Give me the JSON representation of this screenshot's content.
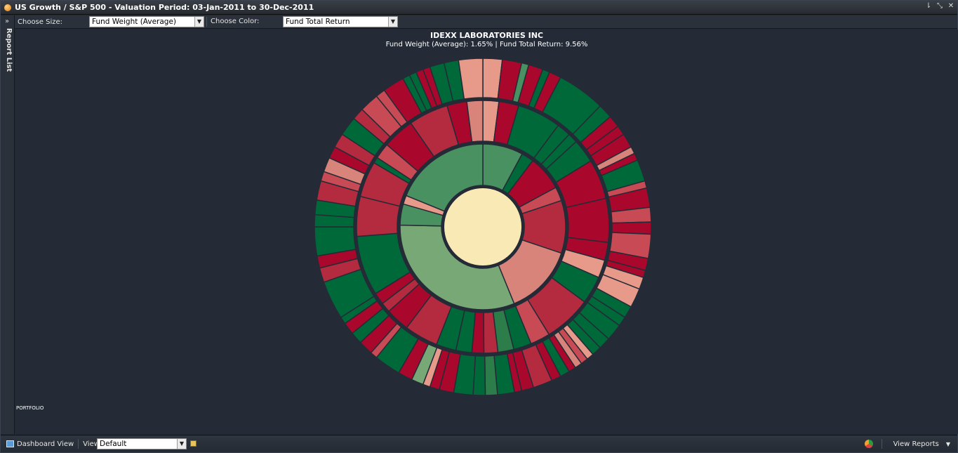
{
  "window": {
    "title": "US Growth / S&P 500 - Valuation Period: 03-Jan-2011 to 30-Dec-2011"
  },
  "toolbar": {
    "size_label": "Choose Size:",
    "size_value": "Fund Weight (Average)",
    "color_label": "Choose Color:",
    "color_value": "Fund Total Return"
  },
  "side_rail": {
    "label": "Report List"
  },
  "chart": {
    "title": "IDEXX LABORATORIES INC",
    "subtitle": "Fund Weight (Average): 1.65% | Fund Total Return: 9.56%",
    "root_label": "PORTFOLIO",
    "center_color": "#f9eab5",
    "colors": {
      "dark_green": "#00693a",
      "green": "#2d7d4a",
      "mid_green": "#4a9162",
      "light_green": "#78a876",
      "dark_red": "#a9082c",
      "red": "#b42a3f",
      "mid_red": "#c74a55",
      "pink": "#d9847a",
      "light_pink": "#e89a8a"
    },
    "rings": [
      {
        "name": "sector",
        "segments": [
          [
            "mid_green",
            23
          ],
          [
            "dark_green",
            7
          ],
          [
            "dark_red",
            20
          ],
          [
            "mid_red",
            8
          ],
          [
            "red",
            30
          ],
          [
            "pink",
            40
          ],
          [
            "light_green",
            92
          ],
          [
            "mid_green",
            12
          ],
          [
            "light_pink",
            5
          ],
          [
            "mid_green",
            55
          ]
        ]
      },
      {
        "name": "industry",
        "segments": [
          [
            "light_pink",
            8
          ],
          [
            "dark_red",
            10
          ],
          [
            "dark_green",
            22
          ],
          [
            "dark_green",
            7
          ],
          [
            "dark_green",
            5
          ],
          [
            "dark_green",
            12
          ],
          [
            "dark_red",
            20
          ],
          [
            "dark_red",
            22
          ],
          [
            "dark_red",
            9
          ],
          [
            "light_pink",
            9
          ],
          [
            "dark_green",
            14
          ],
          [
            "red",
            24
          ],
          [
            "mid_red",
            10
          ],
          [
            "dark_green",
            9
          ],
          [
            "green",
            8
          ],
          [
            "red",
            7
          ],
          [
            "dark_red",
            6
          ],
          [
            "dark_green",
            8
          ],
          [
            "dark_green",
            10
          ],
          [
            "red",
            17
          ],
          [
            "dark_red",
            12
          ],
          [
            "red",
            5
          ],
          [
            "dark_red",
            6
          ],
          [
            "dark_green",
            30
          ],
          [
            "red",
            20
          ],
          [
            "red",
            18
          ],
          [
            "dark_green",
            3
          ],
          [
            "mid_red",
            8
          ],
          [
            "dark_red",
            16
          ],
          [
            "red",
            20
          ],
          [
            "dark_red",
            10
          ],
          [
            "pink",
            8
          ]
        ]
      },
      {
        "name": "security",
        "segments": [
          [
            "light_pink",
            8
          ],
          [
            "dark_red",
            8
          ],
          [
            "mid_green",
            3
          ],
          [
            "dark_red",
            6
          ],
          [
            "dark_green",
            3
          ],
          [
            "dark_red",
            5
          ],
          [
            "dark_green",
            20
          ],
          [
            "dark_green",
            6
          ],
          [
            "dark_red",
            5
          ],
          [
            "dark_red",
            4
          ],
          [
            "dark_red",
            6
          ],
          [
            "pink",
            3
          ],
          [
            "dark_red",
            3
          ],
          [
            "dark_green",
            9
          ],
          [
            "mid_red",
            3
          ],
          [
            "dark_red",
            8
          ],
          [
            "mid_red",
            6
          ],
          [
            "dark_red",
            5
          ],
          [
            "mid_red",
            10
          ],
          [
            "dark_red",
            5
          ],
          [
            "dark_red",
            3
          ],
          [
            "light_pink",
            5
          ],
          [
            "light_pink",
            8
          ],
          [
            "dark_green",
            5
          ],
          [
            "dark_green",
            4
          ],
          [
            "dark_green",
            7
          ],
          [
            "dark_green",
            5
          ],
          [
            "dark_green",
            4
          ],
          [
            "light_pink",
            3
          ],
          [
            "mid_red",
            3
          ],
          [
            "pink",
            3
          ],
          [
            "dark_red",
            3
          ],
          [
            "dark_green",
            4
          ],
          [
            "dark_red",
            4
          ],
          [
            "red",
            8
          ],
          [
            "dark_red",
            5
          ],
          [
            "dark_red",
            3
          ],
          [
            "dark_green",
            7
          ],
          [
            "green",
            5
          ],
          [
            "dark_green",
            5
          ],
          [
            "dark_green",
            8
          ],
          [
            "dark_red",
            6
          ],
          [
            "dark_red",
            4
          ],
          [
            "light_pink",
            3
          ],
          [
            "light_green",
            5
          ],
          [
            "dark_red",
            6
          ],
          [
            "dark_green",
            11
          ],
          [
            "mid_red",
            3
          ],
          [
            "dark_red",
            6
          ],
          [
            "dark_green",
            5
          ],
          [
            "dark_red",
            5
          ],
          [
            "dark_green",
            3
          ],
          [
            "dark_green",
            16
          ],
          [
            "red",
            6
          ],
          [
            "dark_red",
            5
          ],
          [
            "dark_green",
            12
          ],
          [
            "dark_green",
            5
          ],
          [
            "dark_green",
            6
          ],
          [
            "red",
            8
          ],
          [
            "mid_red",
            4
          ],
          [
            "pink",
            6
          ],
          [
            "dark_red",
            5
          ],
          [
            "red",
            6
          ],
          [
            "dark_green",
            8
          ],
          [
            "red",
            5
          ],
          [
            "mid_red",
            8
          ],
          [
            "mid_red",
            4
          ],
          [
            "dark_red",
            9
          ],
          [
            "dark_green",
            3
          ],
          [
            "dark_green",
            3
          ],
          [
            "dark_red",
            3
          ],
          [
            "dark_red",
            3
          ],
          [
            "dark_green",
            6
          ],
          [
            "dark_green",
            6
          ],
          [
            "light_pink",
            10
          ]
        ]
      }
    ]
  },
  "statusbar": {
    "dashboard_label": "Dashboard View",
    "views_label": "Views:",
    "views_value": "Default",
    "view_reports_label": "View Reports"
  }
}
